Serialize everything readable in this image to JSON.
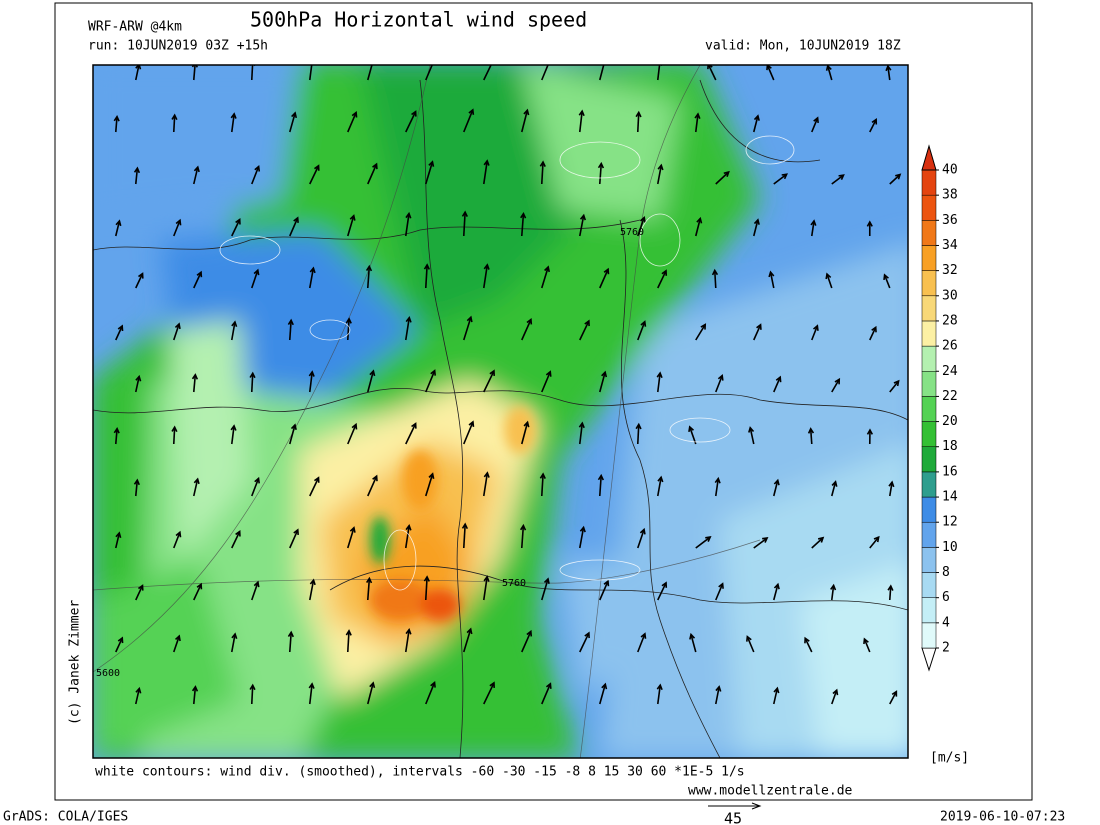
{
  "header": {
    "model": "WRF-ARW @4km",
    "title": "500hPa Horizontal wind speed",
    "run": "run: 10JUN2019 03Z +15h",
    "valid": "valid: Mon, 10JUN2019 18Z"
  },
  "map": {
    "contour_labels": [
      "5760",
      "5760",
      "5600"
    ],
    "credit": "(c) Janek Zimmer",
    "legend_note": "white contours: wind div. (smoothed), intervals -60 -30 -15 -8 8 15 30 60 *1E-5 1/s",
    "website": "www.modellzentrale.de"
  },
  "colorbar": {
    "unit": "[m/s]",
    "levels": [
      2,
      4,
      6,
      8,
      10,
      12,
      14,
      16,
      18,
      20,
      22,
      24,
      26,
      28,
      30,
      32,
      34,
      36,
      38,
      40
    ],
    "colors": [
      "#ffffff",
      "#e0fafa",
      "#c4eef6",
      "#a8daf2",
      "#8cc2ee",
      "#62a4ec",
      "#3e8ce6",
      "#2f9e8e",
      "#1faa3a",
      "#34c034",
      "#54d254",
      "#86e286",
      "#b4f0b0",
      "#fcf0a4",
      "#f8d878",
      "#f8c050",
      "#f8a024",
      "#f07818",
      "#ec5410",
      "#e44410",
      "#d83010"
    ]
  },
  "reference_vector": {
    "length": 45
  },
  "footer": {
    "software": "GrADS: COLA/IGES",
    "timestamp": "2019-06-10-07:23"
  }
}
